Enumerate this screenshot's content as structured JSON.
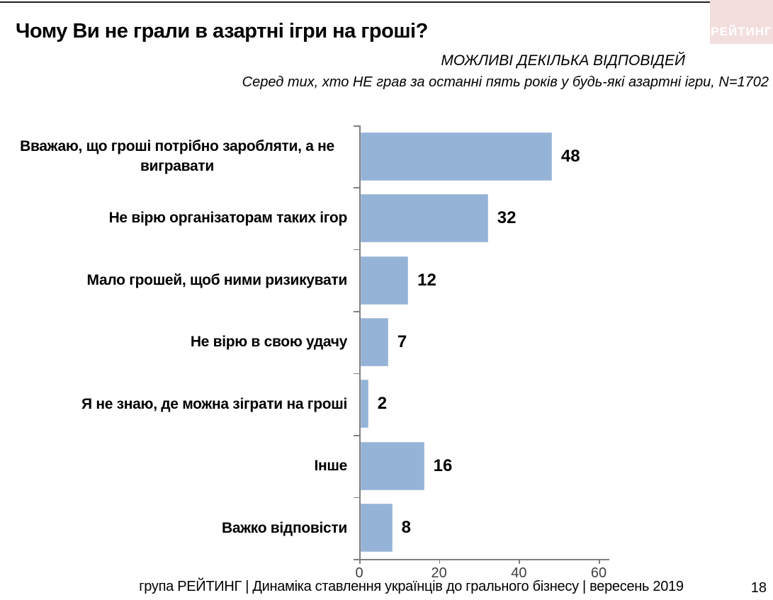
{
  "page": {
    "title": "Чому Ви не грали в азартні ігри на гроші?",
    "note_caps": "МОЖЛИВІ ДЕКІЛЬКА ВІДПОВІДЕЙ",
    "note_sample": "Серед тих, хто НЕ грав за останні пять років у будь-які азартні ігри, N=1702",
    "logo_text": "РЕЙТИНГ",
    "footer": "група РЕЙТИНГ  |  Динаміка ставлення українців до грального бізнесу  |  вересень 2019",
    "page_number": "18"
  },
  "colors": {
    "bar": "#95b3d7",
    "bar_border": "#aec3e0",
    "axis": "#808080",
    "tick_label": "#404040",
    "logo_bg": "#f3dede",
    "logo_text": "#ffffff"
  },
  "chart_data": {
    "type": "bar",
    "orientation": "horizontal",
    "title": "Чому Ви не грали в азартні ігри на гроші?",
    "subtitle": "МОЖЛИВІ ДЕКІЛЬКА ВІДПОВІДЕЙ — Серед тих, хто НЕ грав за останні пять років у будь-які азартні ігри, N=1702",
    "categories": [
      "Вважаю, що гроші потрібно заробляти, а не вигравати",
      "Не вірю організаторам таких ігор",
      "Мало грошей, щоб ними ризикувати",
      "Не вірю в свою удачу",
      "Я не знаю, де можна зіграти на гроші",
      "Інше",
      "Важко відповісти"
    ],
    "values": [
      48,
      32,
      12,
      7,
      2,
      16,
      8
    ],
    "xlabel": "",
    "ylabel": "",
    "xlim": [
      0,
      62
    ],
    "xticks": [
      0,
      20,
      40,
      60
    ],
    "xtick_labels": [
      "0",
      "20",
      "40",
      "60"
    ],
    "grid": false,
    "value_labels": true,
    "legend": "none"
  }
}
